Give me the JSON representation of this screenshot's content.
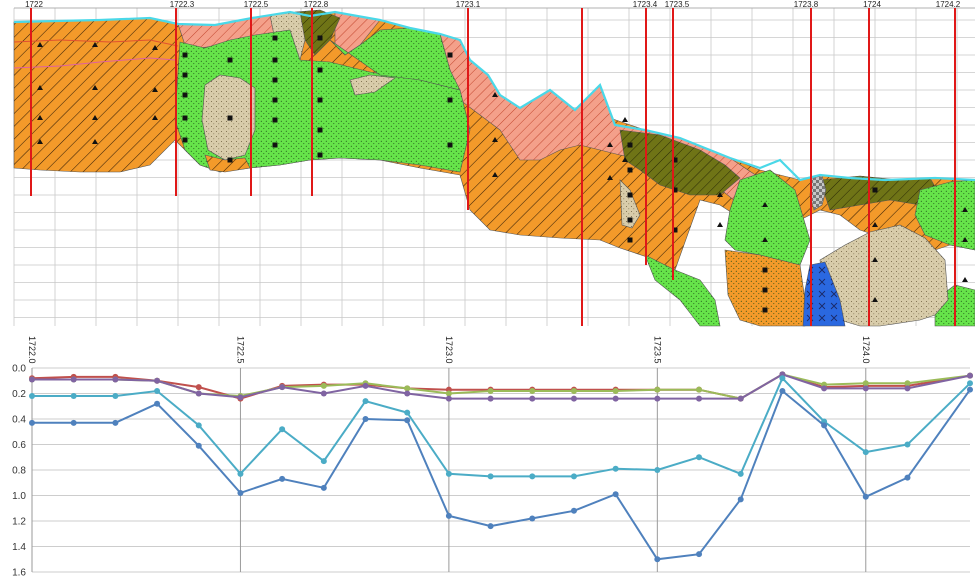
{
  "section": {
    "borehole_labels": [
      "1722",
      "1722.3",
      "1722.5",
      "1722.8",
      "1723.1",
      "1723.4",
      "1723.5",
      "1723.8",
      "1724",
      "1724.2"
    ],
    "colors": {
      "orange": "#f39a2a",
      "salmon": "#f4a08a",
      "green": "#66e44a",
      "olive": "#6f7416",
      "tan": "#d8ccaa",
      "blue": "#2a68e0",
      "grey": "#c8c8c8",
      "outline": "#4ad8e8",
      "borehole": "#e01818",
      "grid": "#c8c8c8"
    }
  },
  "chart_data": {
    "type": "line",
    "x_tick_labels": [
      "1722.0",
      "1722.5",
      "1723.0",
      "1723.5",
      "1724.0"
    ],
    "y_tick_labels": [
      "0.0",
      "0.2",
      "0.4",
      "0.6",
      "0.8",
      "1.0",
      "1.2",
      "1.4",
      "1.6"
    ],
    "xlim": [
      1722.0,
      1724.25
    ],
    "ylim": [
      0,
      1.6
    ],
    "y_inverted": true,
    "grid": true,
    "series": [
      {
        "color": "#c0504d",
        "x": [
          1722.0,
          1722.1,
          1722.2,
          1722.3,
          1722.4,
          1722.5,
          1722.6,
          1722.7,
          1722.8,
          1722.9,
          1723.0,
          1723.1,
          1723.2,
          1723.3,
          1723.4,
          1723.5,
          1723.6,
          1723.7,
          1723.8,
          1723.9,
          1724.0,
          1724.1,
          1724.25
        ],
        "y": [
          0.08,
          0.07,
          0.07,
          0.1,
          0.15,
          0.24,
          0.14,
          0.13,
          0.13,
          0.16,
          0.17,
          0.17,
          0.17,
          0.17,
          0.17,
          0.17,
          0.17,
          0.24,
          0.05,
          0.15,
          0.14,
          0.14,
          0.06
        ]
      },
      {
        "color": "#9bbb59",
        "x": [
          1722.0,
          1722.1,
          1722.2,
          1722.3,
          1722.4,
          1722.5,
          1722.6,
          1722.7,
          1722.8,
          1722.9,
          1723.0,
          1723.1,
          1723.2,
          1723.3,
          1723.4,
          1723.5,
          1723.6,
          1723.7,
          1723.8,
          1723.9,
          1724.0,
          1724.1,
          1724.25
        ],
        "y": [
          0.09,
          0.09,
          0.09,
          0.1,
          0.2,
          0.22,
          0.15,
          0.14,
          0.12,
          0.16,
          0.2,
          0.18,
          0.18,
          0.18,
          0.18,
          0.17,
          0.17,
          0.24,
          0.05,
          0.13,
          0.12,
          0.12,
          0.06
        ]
      },
      {
        "color": "#8064a2",
        "x": [
          1722.0,
          1722.1,
          1722.2,
          1722.3,
          1722.4,
          1722.5,
          1722.6,
          1722.7,
          1722.8,
          1722.9,
          1723.0,
          1723.1,
          1723.2,
          1723.3,
          1723.4,
          1723.5,
          1723.6,
          1723.7,
          1723.8,
          1723.9,
          1724.0,
          1724.1,
          1724.25
        ],
        "y": [
          0.09,
          0.09,
          0.09,
          0.1,
          0.2,
          0.23,
          0.15,
          0.2,
          0.14,
          0.2,
          0.24,
          0.24,
          0.24,
          0.24,
          0.24,
          0.24,
          0.24,
          0.24,
          0.05,
          0.16,
          0.16,
          0.16,
          0.06
        ]
      },
      {
        "color": "#4bacc6",
        "x": [
          1722.0,
          1722.1,
          1722.2,
          1722.3,
          1722.4,
          1722.5,
          1722.6,
          1722.7,
          1722.8,
          1722.9,
          1723.0,
          1723.1,
          1723.2,
          1723.3,
          1723.4,
          1723.5,
          1723.6,
          1723.7,
          1723.8,
          1723.9,
          1724.0,
          1724.1,
          1724.25
        ],
        "y": [
          0.22,
          0.22,
          0.22,
          0.18,
          0.45,
          0.83,
          0.48,
          0.73,
          0.26,
          0.35,
          0.83,
          0.85,
          0.85,
          0.85,
          0.79,
          0.8,
          0.7,
          0.83,
          0.08,
          0.42,
          0.66,
          0.6,
          0.12
        ]
      },
      {
        "color": "#4f81bd",
        "x": [
          1722.0,
          1722.1,
          1722.2,
          1722.3,
          1722.4,
          1722.5,
          1722.6,
          1722.7,
          1722.8,
          1722.9,
          1723.0,
          1723.1,
          1723.2,
          1723.3,
          1723.4,
          1723.5,
          1723.6,
          1723.7,
          1723.8,
          1723.9,
          1724.0,
          1724.1,
          1724.25
        ],
        "y": [
          0.43,
          0.43,
          0.43,
          0.28,
          0.61,
          0.98,
          0.87,
          0.94,
          0.4,
          0.41,
          1.16,
          1.24,
          1.18,
          1.12,
          0.99,
          1.5,
          1.46,
          1.03,
          0.18,
          0.45,
          1.01,
          0.86,
          0.17
        ]
      }
    ]
  }
}
